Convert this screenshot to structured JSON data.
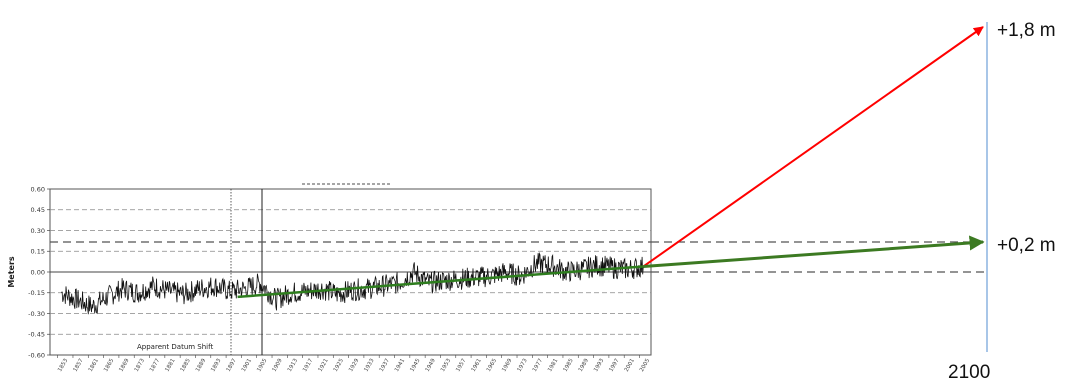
{
  "chart_data": {
    "type": "line",
    "ylabel": "Meters",
    "ylim": [
      -0.6,
      0.6
    ],
    "yticks": [
      "0.60",
      "0.45",
      "0.30",
      "0.15",
      "0.00",
      "-0.15",
      "-0.30",
      "-0.45",
      "-0.60"
    ],
    "xticks": [
      "1853",
      "1857",
      "1861",
      "1865",
      "1869",
      "1873",
      "1877",
      "1881",
      "1885",
      "1889",
      "1893",
      "1897",
      "1901",
      "1905",
      "1909",
      "1913",
      "1917",
      "1921",
      "1925",
      "1929",
      "1933",
      "1937",
      "1941",
      "1945",
      "1949",
      "1953",
      "1957",
      "1961",
      "1965",
      "1969",
      "1973",
      "1977",
      "1981",
      "1985",
      "1989",
      "1993",
      "1997",
      "2001",
      "2005"
    ],
    "annotation": "Apparent Datum Shift",
    "series": [
      {
        "style": "noisy-black",
        "color": "#111111",
        "x": [
          1854,
          1858,
          1862,
          1866,
          1870,
          1874,
          1878,
          1882,
          1886,
          1890,
          1894,
          1898,
          1902,
          1906,
          1910,
          1914,
          1918,
          1922,
          1926,
          1930,
          1934,
          1938,
          1942,
          1946,
          1950,
          1954,
          1958,
          1962,
          1966,
          1970,
          1974,
          1978,
          1982,
          1986,
          1990,
          1994,
          1998,
          2002,
          2006
        ],
        "values": [
          -0.15,
          -0.2,
          -0.25,
          -0.18,
          -0.12,
          -0.15,
          -0.1,
          -0.14,
          -0.16,
          -0.12,
          -0.1,
          -0.14,
          -0.12,
          -0.08,
          -0.2,
          -0.15,
          -0.14,
          -0.12,
          -0.16,
          -0.13,
          -0.12,
          -0.1,
          -0.08,
          0,
          -0.08,
          -0.06,
          -0.05,
          -0.04,
          -0.03,
          0,
          -0.03,
          0.06,
          0.05,
          0,
          0.02,
          0.05,
          0.03,
          0.02,
          0.04
        ]
      },
      {
        "style": "trend",
        "color": "#2e7d1e",
        "x": [
          1900,
          2006
        ],
        "values": [
          -0.18,
          0.04
        ]
      }
    ],
    "projections": [
      {
        "label": "+1,8 m",
        "color": "#ff0000",
        "from_x": 2006,
        "from_y": 0.04,
        "to_x": 2100,
        "to_y": 1.8
      },
      {
        "label": "+0,2 m",
        "color": "#3c7a22",
        "from_x": 2006,
        "from_y": 0.04,
        "to_x": 2100,
        "to_y": 0.2
      }
    ],
    "projection_axis_label": "2100",
    "colors": {
      "projection_axis": "#8cb4e0",
      "trend": "#2e7d1e",
      "high": "#ff0000"
    }
  }
}
